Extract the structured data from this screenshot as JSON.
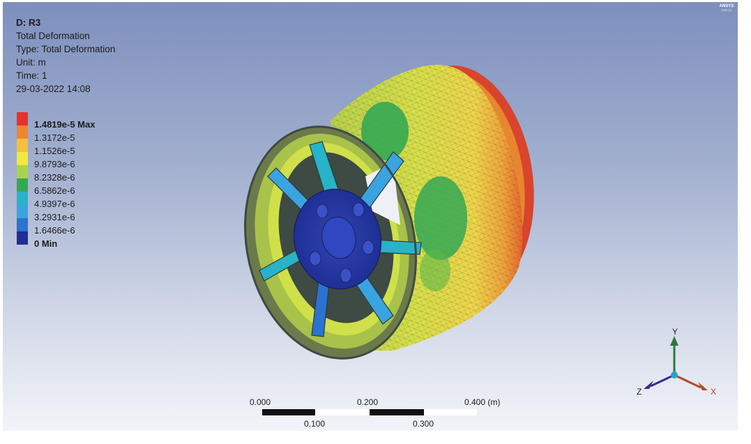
{
  "result": {
    "name": "D: R3",
    "title": "Total Deformation",
    "type": "Type: Total Deformation",
    "unit": "Unit: m",
    "time": "Time: 1",
    "timestamp": "29-03-2022 14:08"
  },
  "legend": [
    {
      "label": "1.4819e-5 Max",
      "color": "#e8312a",
      "bold": true
    },
    {
      "label": "1.3172e-5",
      "color": "#f0862b",
      "bold": false
    },
    {
      "label": "1.1526e-5",
      "color": "#f5c03a",
      "bold": false
    },
    {
      "label": "9.8793e-6",
      "color": "#f2ea3c",
      "bold": false
    },
    {
      "label": "8.2328e-6",
      "color": "#a8d44a",
      "bold": false
    },
    {
      "label": "6.5862e-6",
      "color": "#34a853",
      "bold": false
    },
    {
      "label": "4.9397e-6",
      "color": "#28b3c8",
      "bold": false
    },
    {
      "label": "3.2931e-6",
      "color": "#3aa4e0",
      "bold": false
    },
    {
      "label": "1.6466e-6",
      "color": "#2a73d0",
      "bold": false
    },
    {
      "label": "0 Min",
      "color": "#1e2f96",
      "bold": true
    }
  ],
  "logo": {
    "text": "ANSYS",
    "sub": "2022 R1"
  },
  "scale": {
    "top_labels": [
      "0.000",
      "0.200",
      "0.400 (m)"
    ],
    "bottom_labels": [
      "0.100",
      "0.300"
    ]
  },
  "triad": {
    "y": "Y",
    "x": "X",
    "z": "Z"
  }
}
